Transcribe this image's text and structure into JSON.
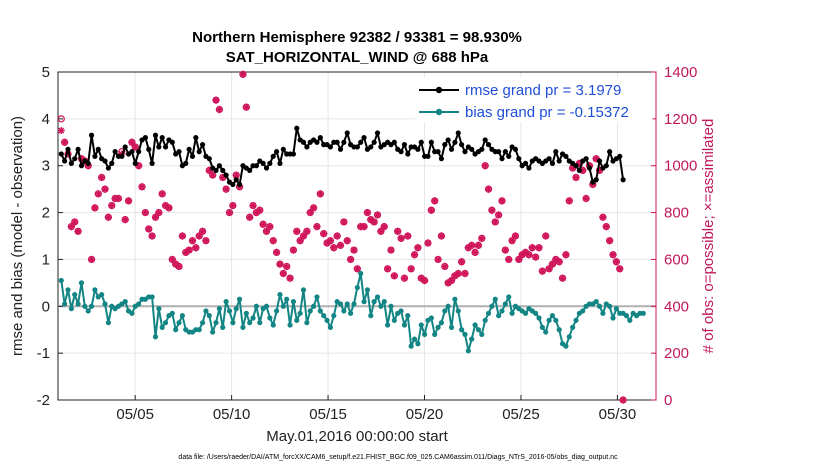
{
  "chart_data": {
    "type": "line",
    "title_line1": "Northern Hemisphere 92382 / 93381 = 98.930%",
    "title_line2": "SAT_HORIZONTAL_WIND @ 688 hPa",
    "xlabel": "May.01,2016 00:00:00 start",
    "ylabel_left": "rmse and bias (model - observation)",
    "ylabel_right": "# of obs: o=possible; ×=assimilated",
    "footer": "data file: /Users/raeder/DAI/ATM_forcXX/CAM6_setup/f.e21.FHIST_BGC.f09_025.CAM6assim.011/Diags_NTrS_2016-05/obs_diag_output.nc",
    "xlim": [
      1,
      32
    ],
    "ylim_left": [
      -2,
      5
    ],
    "ylim_right": [
      0,
      1400
    ],
    "x_ticks": [
      5,
      10,
      15,
      20,
      25,
      30
    ],
    "x_tick_labels": [
      "05/05",
      "05/10",
      "05/15",
      "05/20",
      "05/25",
      "05/30"
    ],
    "y_ticks_left": [
      -2,
      -1,
      0,
      1,
      2,
      3,
      4,
      5
    ],
    "y_tick_labels_left": [
      "-2",
      "-1",
      "0",
      "1",
      "2",
      "3",
      "4",
      "5"
    ],
    "y_ticks_right": [
      0,
      200,
      400,
      600,
      800,
      1000,
      1200,
      1400
    ],
    "y_tick_labels_right": [
      "0",
      "200",
      "400",
      "600",
      "800",
      "1000",
      "1200",
      "1400"
    ],
    "grid": true,
    "legend_placement": "top-right",
    "colors": {
      "rmse": "#000000",
      "bias": "#138585",
      "obs": "#d0145a",
      "zero_line": "#b0b0b0",
      "grid": "#e6e6e6"
    },
    "series": [
      {
        "name": "rmse grand pr = 3.1979",
        "axis": "left",
        "values": [
          3.25,
          3.1,
          3.35,
          3.05,
          3.15,
          3.35,
          3.0,
          3.1,
          3.05,
          3.65,
          3.2,
          3.35,
          3.15,
          3.1,
          2.95,
          3.05,
          3.3,
          3.2,
          3.2,
          3.4,
          3.25,
          3.3,
          3.05,
          3.3,
          3.55,
          3.6,
          3.35,
          3.05,
          3.65,
          3.4,
          3.6,
          3.4,
          3.55,
          3.5,
          3.25,
          3.3,
          3.0,
          3.05,
          3.35,
          3.2,
          3.6,
          3.3,
          3.45,
          3.2,
          3.15,
          2.95,
          2.9,
          3.0,
          2.9,
          2.8,
          2.65,
          2.6,
          2.7,
          2.6,
          3.0,
          2.95,
          2.9,
          3.0,
          3.0,
          3.1,
          3.05,
          2.95,
          3.05,
          3.2,
          3.3,
          3.05,
          3.35,
          3.25,
          3.25,
          3.25,
          3.8,
          3.55,
          3.5,
          3.4,
          3.5,
          3.55,
          3.5,
          3.6,
          3.45,
          3.45,
          3.4,
          3.5,
          3.5,
          3.35,
          3.5,
          3.7,
          3.45,
          3.4,
          3.4,
          3.5,
          3.6,
          3.35,
          3.4,
          3.5,
          3.7,
          3.4,
          3.45,
          3.5,
          3.45,
          3.5,
          3.35,
          3.3,
          3.45,
          3.25,
          3.4,
          3.4,
          3.35,
          3.5,
          3.2,
          3.2,
          3.5,
          3.3,
          3.3,
          3.15,
          3.45,
          3.55,
          3.35,
          3.5,
          3.7,
          3.45,
          3.3,
          3.4,
          3.35,
          3.25,
          3.3,
          3.35,
          3.55,
          3.45,
          3.35,
          3.3,
          3.3,
          3.15,
          3.3,
          3.2,
          3.4,
          3.35,
          3.15,
          3.0,
          3.05,
          2.95,
          3.1,
          3.15,
          3.1,
          3.05,
          3.1,
          3.15,
          3.05,
          3.3,
          3.1,
          3.25,
          3.2,
          3.1,
          3.05,
          3.0,
          2.9,
          3.1,
          3.15,
          2.95,
          2.65,
          2.7,
          3.1,
          2.95,
          3.0,
          3.3,
          3.1,
          3.15,
          3.2,
          2.7
        ]
      },
      {
        "name": "bias grand pr = -0.15372",
        "axis": "left",
        "values": [
          0.55,
          0.05,
          0.35,
          -0.05,
          0.25,
          0.05,
          0.5,
          0.0,
          -0.1,
          0.0,
          0.35,
          0.2,
          0.25,
          0.05,
          -0.35,
          0.0,
          -0.05,
          0.0,
          0.05,
          0.1,
          -0.1,
          -0.15,
          0.0,
          0.05,
          0.15,
          0.15,
          0.2,
          0.2,
          -0.65,
          -0.05,
          -0.45,
          -0.35,
          -0.2,
          -0.15,
          -0.5,
          -0.35,
          -0.2,
          -0.5,
          -0.55,
          -0.55,
          -0.5,
          -0.5,
          -0.35,
          -0.1,
          -0.2,
          -0.55,
          -0.35,
          -0.05,
          -0.45,
          0.1,
          -0.1,
          -0.35,
          -0.05,
          0.15,
          -0.45,
          -0.15,
          -0.35,
          -0.25,
          0.0,
          -0.35,
          -0.05,
          0.0,
          -0.25,
          -0.4,
          -0.1,
          0.25,
          0.0,
          0.15,
          -0.4,
          0.1,
          -0.3,
          -0.15,
          0.35,
          -0.35,
          -0.1,
          0.0,
          0.2,
          -0.1,
          -0.2,
          -0.3,
          -0.45,
          -0.2,
          0.1,
          0.05,
          -0.1,
          0.05,
          -0.15,
          0.05,
          0.4,
          0.7,
          0.1,
          0.35,
          -0.2,
          0.1,
          0.2,
          0.0,
          0.1,
          -0.4,
          0.0,
          -0.3,
          -0.15,
          -0.1,
          -0.4,
          -0.2,
          -0.85,
          -0.7,
          -0.8,
          -0.4,
          -0.6,
          -0.3,
          -0.25,
          -0.6,
          -0.45,
          -0.35,
          -0.1,
          0.0,
          -0.45,
          0.15,
          -0.1,
          -0.5,
          -0.6,
          -0.95,
          -0.7,
          -0.4,
          -0.5,
          -0.6,
          -0.3,
          -0.15,
          0.0,
          0.15,
          -0.2,
          -0.1,
          0.05,
          0.2,
          -0.15,
          0.0,
          -0.05,
          -0.1,
          -0.15,
          -0.05,
          -0.1,
          -0.15,
          -0.25,
          -0.45,
          -0.55,
          -0.3,
          -0.2,
          -0.3,
          -0.5,
          -0.8,
          -0.85,
          -0.65,
          -0.45,
          -0.3,
          -0.15,
          -0.1,
          0.0,
          0.05,
          0.05,
          0.1,
          0.0,
          -0.15,
          0.05,
          0.0,
          -0.25,
          -0.05,
          -0.15,
          -0.15,
          -0.2,
          -0.3,
          -0.15,
          -0.2,
          -0.15,
          -0.15
        ]
      },
      {
        "name": "assimilated",
        "axis": "right",
        "values": [
          1150,
          1100,
          1050,
          740,
          760,
          720,
          1030,
          1020,
          1000,
          600,
          820,
          880,
          950,
          900,
          780,
          830,
          860,
          860,
          1050,
          770,
          850,
          1100,
          1080,
          1000,
          910,
          800,
          730,
          700,
          780,
          800,
          880,
          830,
          820,
          600,
          580,
          570,
          700,
          630,
          640,
          680,
          650,
          700,
          720,
          680,
          980,
          960,
          1280,
          1240,
          950,
          900,
          800,
          830,
          960,
          910,
          1390,
          1250,
          780,
          830,
          800,
          810,
          750,
          720,
          740,
          680,
          630,
          580,
          540,
          570,
          520,
          640,
          720,
          680,
          700,
          720,
          800,
          820,
          740,
          880,
          710,
          670,
          680,
          650,
          700,
          660,
          760,
          680,
          600,
          640,
          560,
          740,
          740,
          800,
          770,
          760,
          790,
          720,
          740,
          560,
          640,
          530,
          720,
          690,
          520,
          700,
          560,
          620,
          650,
          520,
          510,
          670,
          810,
          850,
          600,
          700,
          570,
          500,
          510,
          530,
          540,
          590,
          540,
          650,
          660,
          630,
          660,
          690,
          1000,
          900,
          810,
          760,
          790,
          850,
          640,
          600,
          680,
          700,
          600,
          620,
          630,
          620,
          650,
          610,
          650,
          550,
          700,
          560,
          580,
          600,
          590,
          520,
          620,
          850,
          990,
          950,
          1010,
          980,
          860,
          1000,
          920,
          1030,
          980,
          780,
          740,
          680,
          620,
          590,
          560,
          0
        ]
      },
      {
        "name": "possible",
        "axis": "right",
        "values": [
          1200,
          1100,
          1050,
          740,
          760,
          720,
          1030,
          1020,
          1000,
          600,
          820,
          880,
          950,
          900,
          780,
          830,
          860,
          860,
          1060,
          770,
          850,
          1100,
          1080,
          1000,
          910,
          800,
          730,
          700,
          780,
          800,
          880,
          830,
          820,
          600,
          580,
          570,
          700,
          630,
          640,
          680,
          650,
          700,
          720,
          680,
          980,
          960,
          1280,
          1240,
          950,
          900,
          800,
          830,
          960,
          910,
          1390,
          1250,
          780,
          830,
          800,
          810,
          750,
          720,
          740,
          680,
          630,
          580,
          540,
          570,
          520,
          640,
          720,
          680,
          700,
          720,
          800,
          820,
          740,
          880,
          710,
          670,
          680,
          650,
          700,
          660,
          760,
          680,
          600,
          640,
          560,
          740,
          740,
          800,
          770,
          760,
          790,
          720,
          740,
          560,
          640,
          530,
          720,
          690,
          520,
          700,
          560,
          620,
          650,
          520,
          510,
          670,
          810,
          850,
          600,
          700,
          570,
          500,
          510,
          530,
          540,
          590,
          540,
          650,
          660,
          630,
          660,
          690,
          1000,
          900,
          810,
          760,
          790,
          850,
          640,
          600,
          680,
          700,
          600,
          620,
          630,
          620,
          650,
          610,
          650,
          550,
          700,
          560,
          580,
          600,
          590,
          520,
          620,
          850,
          990,
          950,
          1010,
          980,
          860,
          1000,
          920,
          1030,
          980,
          780,
          740,
          680,
          620,
          590,
          560,
          0
        ]
      }
    ],
    "x_start": 1.17,
    "x_step": 0.1744
  }
}
